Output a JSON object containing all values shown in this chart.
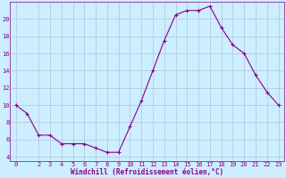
{
  "x": [
    0,
    1,
    2,
    3,
    4,
    5,
    6,
    7,
    8,
    9,
    10,
    11,
    12,
    13,
    14,
    15,
    16,
    17,
    18,
    19,
    20,
    21,
    22,
    23
  ],
  "y": [
    10,
    9,
    6.5,
    6.5,
    5.5,
    5.5,
    5.5,
    5.0,
    4.5,
    4.5,
    7.5,
    10.5,
    14,
    17.5,
    20.5,
    21,
    21,
    21.5,
    19,
    17,
    16,
    13.5,
    11.5,
    10
  ],
  "line_color": "#880088",
  "marker_color": "#880088",
  "bg_color": "#cceeff",
  "grid_color": "#aabbcc",
  "xlabel": "Windchill (Refroidissement éolien,°C)",
  "xlabel_color": "#880088",
  "tick_color": "#880088",
  "spine_color": "#880088",
  "ylim": [
    3.5,
    22
  ],
  "xlim": [
    -0.5,
    23.5
  ],
  "yticks": [
    4,
    6,
    8,
    10,
    12,
    14,
    16,
    18,
    20
  ],
  "xticks": [
    0,
    2,
    3,
    4,
    5,
    6,
    7,
    8,
    9,
    10,
    11,
    12,
    13,
    14,
    15,
    16,
    17,
    18,
    19,
    20,
    21,
    22,
    23
  ],
  "tick_fontsize": 5,
  "xlabel_fontsize": 5.5
}
